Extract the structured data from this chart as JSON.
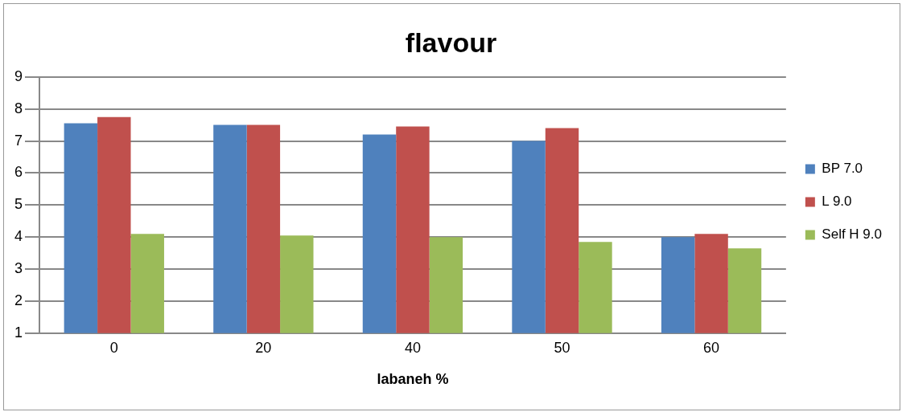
{
  "chart_data": {
    "type": "bar",
    "title": "flavour",
    "xlabel": "labaneh %",
    "categories": [
      "0",
      "20",
      "40",
      "50",
      "60"
    ],
    "series": [
      {
        "name": "BP 7.0",
        "color": "#4f81bd",
        "values": [
          7.55,
          7.5,
          7.2,
          7.0,
          4.0
        ]
      },
      {
        "name": "L 9.0",
        "color": "#c0504d",
        "values": [
          7.75,
          7.5,
          7.45,
          7.4,
          4.1
        ]
      },
      {
        "name": "Self H 9.0",
        "color": "#9bbb59",
        "values": [
          4.1,
          4.05,
          4.0,
          3.85,
          3.65
        ]
      }
    ],
    "ylim": [
      1,
      9
    ],
    "yticks": [
      1,
      2,
      3,
      4,
      5,
      6,
      7,
      8,
      9
    ],
    "grid": "y",
    "legend": "right"
  }
}
